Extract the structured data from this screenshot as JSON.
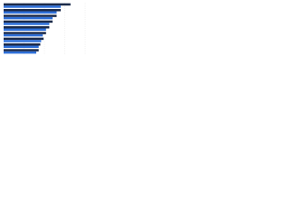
{
  "chart_data": {
    "type": "bar",
    "orientation": "horizontal",
    "categories": [
      null,
      null,
      null,
      null,
      null,
      null,
      null,
      null,
      null
    ],
    "series": [
      {
        "color": "#1b2a4a",
        "values": [
          82,
          70,
          65,
          60,
          56,
          52,
          49,
          45,
          43
        ]
      },
      {
        "color": "#2e6fd8",
        "values": [
          70,
          65,
          60,
          56,
          52,
          48,
          46,
          43,
          40
        ]
      }
    ],
    "xlim": [
      0,
      100
    ],
    "xticks": [
      0,
      25,
      50,
      75,
      100
    ],
    "grid": true
  }
}
